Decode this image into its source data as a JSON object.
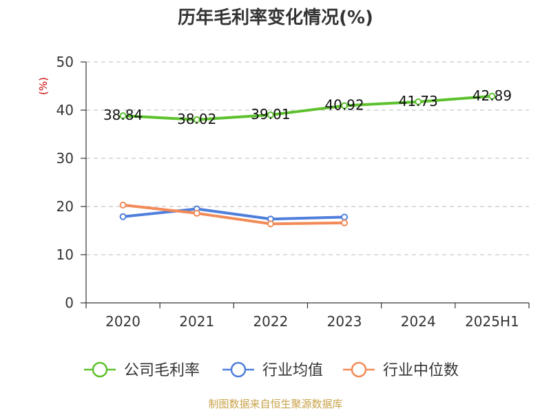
{
  "chart_data": {
    "type": "line",
    "title": "历年毛利率变化情况(%)",
    "ylabel": "(%)",
    "categories": [
      "2020",
      "2021",
      "2022",
      "2023",
      "2024",
      "2025H1"
    ],
    "ylim": [
      0,
      50
    ],
    "yticks": [
      0,
      10,
      20,
      30,
      40,
      50
    ],
    "grid": true,
    "legend_position": "bottom",
    "series": [
      {
        "name": "公司毛利率",
        "color": "#5dc12d",
        "values": [
          38.84,
          38.02,
          39.01,
          40.92,
          41.73,
          42.89
        ],
        "labels": [
          "38.84",
          "38.02",
          "39.01",
          "40.92",
          "41.73",
          "42.89"
        ]
      },
      {
        "name": "行业均值",
        "color": "#4f7fdb",
        "values": [
          17.9,
          19.5,
          17.4,
          17.8,
          null,
          null
        ]
      },
      {
        "name": "行业中位数",
        "color": "#f28a57",
        "values": [
          20.3,
          18.6,
          16.4,
          16.6,
          null,
          null
        ]
      }
    ]
  },
  "source": "制图数据来自恒生聚源数据库"
}
